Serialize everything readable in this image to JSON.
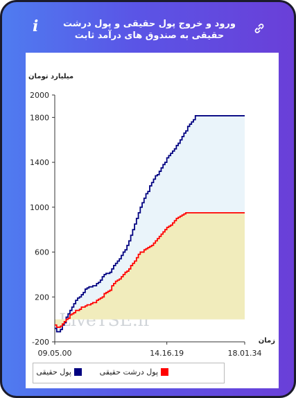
{
  "header": {
    "title": "ورود و خروج پول حقیقی و پول درشت حقیقی به صندوق های درآمد ثابت",
    "info_icon": "info-icon",
    "link_icon": "link-icon",
    "info_glyph": "i"
  },
  "colors": {
    "real_money": "#000080",
    "big_real_money": "#ff0000",
    "real_fill": "#eaf4fa",
    "big_fill": "#f1ecbc"
  },
  "chart_data": {
    "type": "line",
    "title": "",
    "ylabel": "میلیارد تومان",
    "xlabel": "زمان",
    "ylim": [
      -200,
      2000
    ],
    "yticks": [
      -200,
      200,
      600,
      1000,
      1400,
      1800,
      2000
    ],
    "xlim": [
      0,
      100
    ],
    "xtick_labels": [
      {
        "x": 0,
        "label": "09.05.00"
      },
      {
        "x": 59,
        "label": "14.16.19"
      },
      {
        "x": 100,
        "label": "18.01.34"
      }
    ],
    "watermark": "LiveTSE.ir",
    "legend": "bottom",
    "series": [
      {
        "name": "پول حقیقی",
        "x": [
          0,
          1,
          2,
          3,
          4,
          5,
          6,
          7,
          8,
          9,
          10,
          11,
          12,
          13,
          14,
          15,
          16,
          17,
          18,
          19,
          20,
          21,
          22,
          23,
          24,
          25,
          26,
          27,
          28,
          29,
          30,
          31,
          32,
          33,
          34,
          35,
          36,
          37,
          38,
          39,
          40,
          41,
          42,
          43,
          44,
          45,
          46,
          47,
          48,
          49,
          50,
          51,
          52,
          53,
          54,
          55,
          56,
          57,
          58,
          59,
          60,
          61,
          62,
          63,
          64,
          65,
          66,
          67,
          68,
          69,
          70,
          71,
          72,
          73,
          74,
          100
        ],
        "values": [
          -80,
          -110,
          -110,
          -90,
          -50,
          -30,
          20,
          50,
          80,
          110,
          140,
          170,
          190,
          200,
          220,
          240,
          270,
          280,
          290,
          290,
          300,
          300,
          320,
          330,
          350,
          380,
          400,
          410,
          410,
          420,
          450,
          480,
          500,
          520,
          540,
          570,
          600,
          620,
          660,
          700,
          750,
          800,
          850,
          900,
          950,
          1000,
          1040,
          1080,
          1120,
          1140,
          1190,
          1220,
          1250,
          1280,
          1290,
          1320,
          1350,
          1380,
          1400,
          1440,
          1460,
          1480,
          1500,
          1520,
          1550,
          1570,
          1600,
          1630,
          1660,
          1680,
          1720,
          1740,
          1760,
          1780,
          1815,
          1815
        ]
      },
      {
        "name": "پول درشت حقیقی",
        "x": [
          0,
          1,
          2,
          3,
          4,
          5,
          6,
          7,
          8,
          9,
          10,
          11,
          12,
          13,
          14,
          15,
          16,
          17,
          18,
          19,
          20,
          21,
          22,
          23,
          24,
          25,
          26,
          27,
          28,
          29,
          30,
          31,
          32,
          33,
          34,
          35,
          36,
          37,
          38,
          39,
          40,
          41,
          42,
          43,
          44,
          45,
          46,
          47,
          48,
          49,
          50,
          51,
          52,
          53,
          54,
          55,
          56,
          57,
          58,
          59,
          60,
          61,
          62,
          63,
          64,
          65,
          66,
          67,
          68,
          69,
          70,
          71,
          72,
          73,
          74,
          100
        ],
        "values": [
          -50,
          -70,
          -70,
          -60,
          -40,
          -20,
          0,
          10,
          40,
          50,
          60,
          80,
          80,
          90,
          110,
          110,
          120,
          130,
          130,
          140,
          150,
          150,
          170,
          180,
          190,
          200,
          230,
          240,
          250,
          260,
          300,
          320,
          340,
          350,
          360,
          380,
          400,
          420,
          430,
          450,
          480,
          500,
          520,
          550,
          580,
          600,
          600,
          620,
          630,
          640,
          650,
          660,
          680,
          700,
          720,
          740,
          760,
          780,
          800,
          820,
          830,
          840,
          860,
          880,
          900,
          910,
          920,
          930,
          940,
          950,
          950,
          950,
          950,
          950,
          950,
          950
        ]
      }
    ]
  }
}
